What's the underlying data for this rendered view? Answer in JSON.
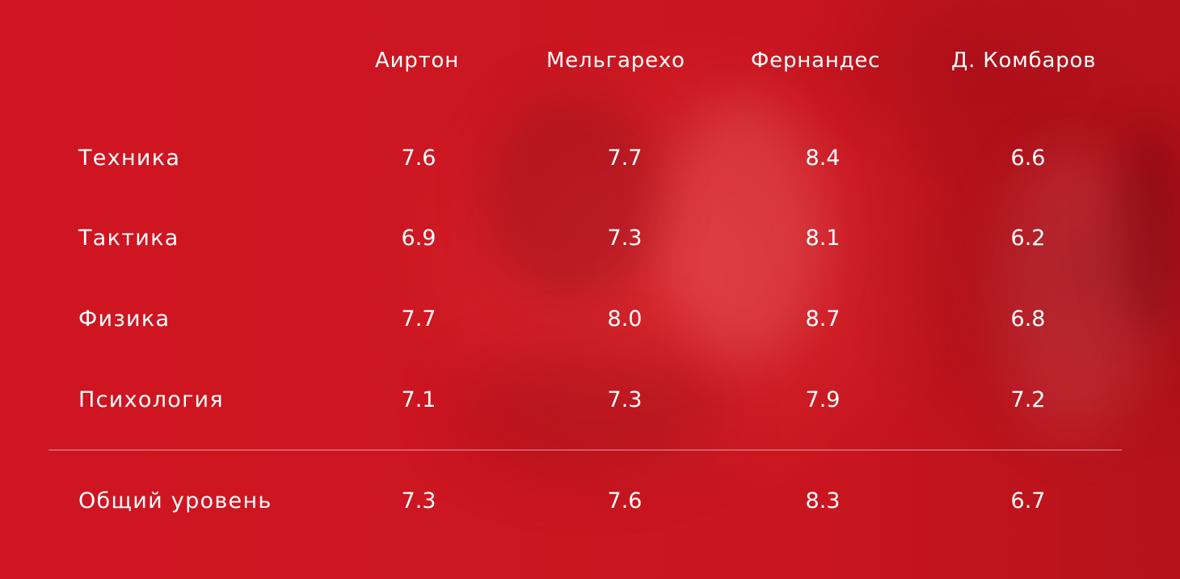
{
  "table": {
    "columns": [
      "Аиртон",
      "Мельгарехо",
      "Фернандес",
      "Д. Комбаров"
    ],
    "rows": [
      {
        "label": "Техника",
        "values": [
          "7.6",
          "7.7",
          "8.4",
          "6.6"
        ]
      },
      {
        "label": "Тактика",
        "values": [
          "6.9",
          "7.3",
          "8.1",
          "6.2"
        ]
      },
      {
        "label": "Физика",
        "values": [
          "7.7",
          "8.0",
          "8.7",
          "6.8"
        ]
      },
      {
        "label": "Психология",
        "values": [
          "7.1",
          "7.3",
          "7.9",
          "7.2"
        ]
      }
    ],
    "total": {
      "label": "Общий уровень",
      "values": [
        "7.3",
        "7.6",
        "8.3",
        "6.7"
      ]
    }
  },
  "colors": {
    "background": "#cc1621",
    "text": "#ffffff"
  }
}
